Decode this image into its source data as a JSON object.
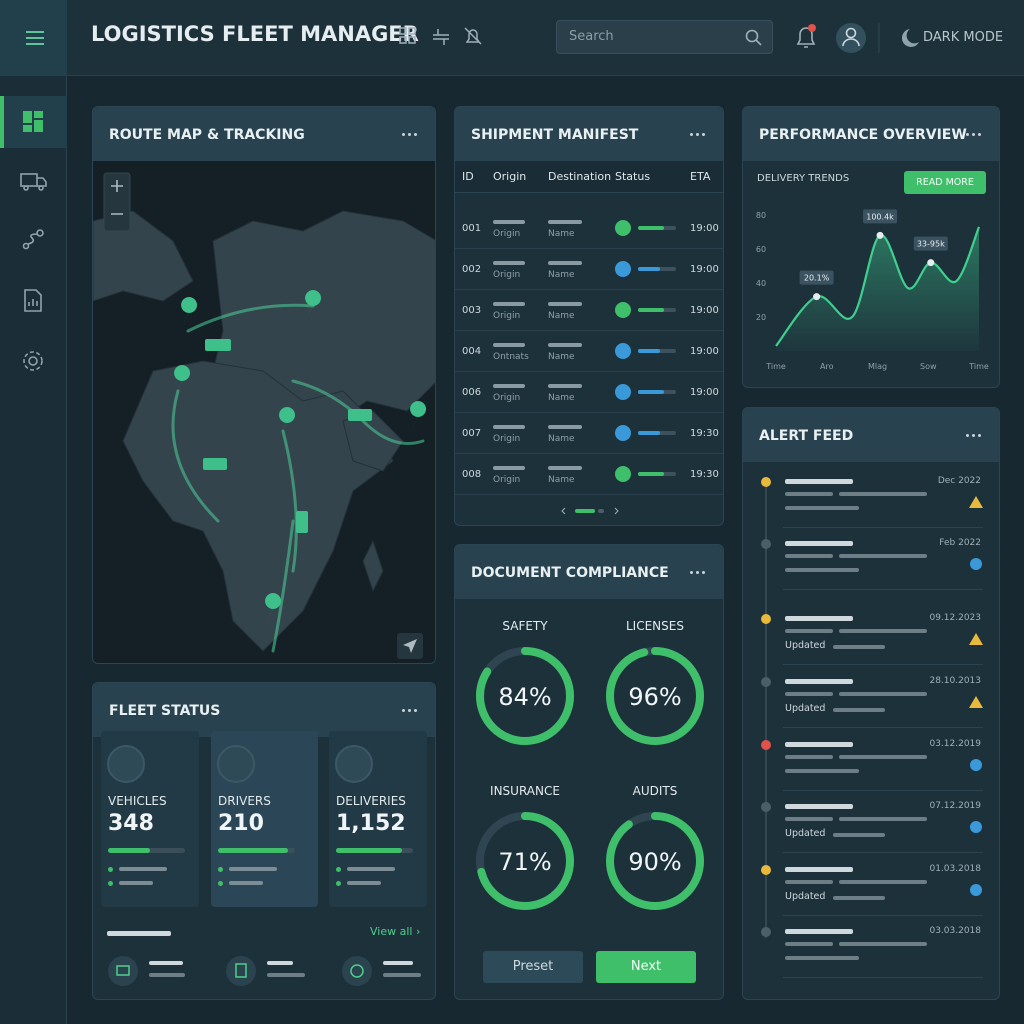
{
  "header": {
    "title": "LOGISTICS FLEET MANAGER",
    "search": "Search",
    "mode": "DARK MODE"
  },
  "route_map": {
    "title": "ROUTE MAP & TRACKING"
  },
  "manifest": {
    "title": "SHIPMENT MANIFEST",
    "columns": [
      "ID",
      "Origin",
      "Destination",
      "Status",
      "ETA"
    ],
    "rows": [
      {
        "id": "001",
        "origin": "Origin",
        "destination": "Name",
        "status_color": "#3fbf6a",
        "eta": "19:00"
      },
      {
        "id": "002",
        "origin": "Origin",
        "destination": "Name",
        "status_color": "#3a9ad9",
        "eta": "19:00"
      },
      {
        "id": "003",
        "origin": "Origin",
        "destination": "Name",
        "status_color": "#3fbf6a",
        "eta": "19:00"
      },
      {
        "id": "004",
        "origin": "Ontnats",
        "destination": "Name",
        "status_color": "#3a9ad9",
        "eta": "19:00"
      },
      {
        "id": "006",
        "origin": "Origin",
        "destination": "Name",
        "status_color": "#3a9ad9",
        "eta": "19:00"
      },
      {
        "id": "007",
        "origin": "Origin",
        "destination": "Name",
        "status_color": "#3a9ad9",
        "eta": "19:30"
      },
      {
        "id": "008",
        "origin": "Origin",
        "destination": "Name",
        "status_color": "#3fbf6a",
        "eta": "19:30"
      }
    ]
  },
  "performance": {
    "title": "PERFORMANCE OVERVIEW",
    "subtitle": "DELIVERY TRENDS",
    "button": "READ MORE",
    "chart_data": {
      "type": "line",
      "color": "#3fcf8e",
      "x": [
        0,
        0.8,
        1.5,
        2.05,
        2.6,
        3.05,
        3.55,
        4
      ],
      "values": [
        3,
        32,
        20,
        68,
        37,
        52,
        41,
        73
      ],
      "xlim": [
        0,
        4
      ],
      "ylim": [
        0,
        80
      ],
      "xticks": [
        {
          "value": 0,
          "label": "Time"
        },
        {
          "value": 1,
          "label": "Aro"
        },
        {
          "value": 2,
          "label": "Mlag"
        },
        {
          "value": 3,
          "label": "Sow"
        },
        {
          "value": 4,
          "label": "Time"
        }
      ],
      "yticks": [
        20,
        40,
        60,
        80
      ],
      "annotations": [
        {
          "text": "20.1%",
          "x": 0.8,
          "y": 32
        },
        {
          "text": "100.4k",
          "x": 2.05,
          "y": 68
        },
        {
          "text": "33-95k",
          "x": 3.05,
          "y": 52
        }
      ]
    }
  },
  "fleet": {
    "title": "FLEET STATUS",
    "link": "View all",
    "items": [
      {
        "label": "VEHICLES",
        "value": "348"
      },
      {
        "label": "DRIVERS",
        "value": "210"
      },
      {
        "label": "DELIVERIES",
        "value": "1,152"
      }
    ]
  },
  "compliance": {
    "title": "DOCUMENT COMPLIANCE",
    "max": 100,
    "gauges": [
      {
        "label": "SAFETY",
        "value": 84,
        "value_label": "84%"
      },
      {
        "label": "LICENSES",
        "value": 96,
        "value_label": "96%"
      },
      {
        "label": "INSURANCE",
        "value": 71,
        "value_label": "71%"
      },
      {
        "label": "AUDITS",
        "value": 90,
        "value_label": "90%"
      }
    ],
    "buttons": [
      "Preset",
      "Next"
    ]
  },
  "alerts": {
    "title": "ALERT FEED",
    "note": "Updated",
    "items": [
      {
        "date": "Dec 2022",
        "color": "#e8b93a",
        "icon": "warn",
        "updated": false
      },
      {
        "date": "Feb 2022",
        "color": "#4a5f6a",
        "icon": "info",
        "updated": false
      },
      {
        "date": "09.12.2023",
        "color": "#e8b93a",
        "icon": "warn",
        "updated": true
      },
      {
        "date": "28.10.2013",
        "color": "#4a5f6a",
        "icon": "warn",
        "updated": true
      },
      {
        "date": "03.12.2019",
        "color": "#e0524a",
        "icon": "info",
        "updated": false
      },
      {
        "date": "07.12.2019",
        "color": "#4a5f6a",
        "icon": "info",
        "updated": true
      },
      {
        "date": "01.03.2018",
        "color": "#e8b93a",
        "icon": "info",
        "updated": true
      },
      {
        "date": "03.03.2018",
        "color": "#4a5f6a",
        "icon": "none",
        "updated": false
      }
    ]
  }
}
